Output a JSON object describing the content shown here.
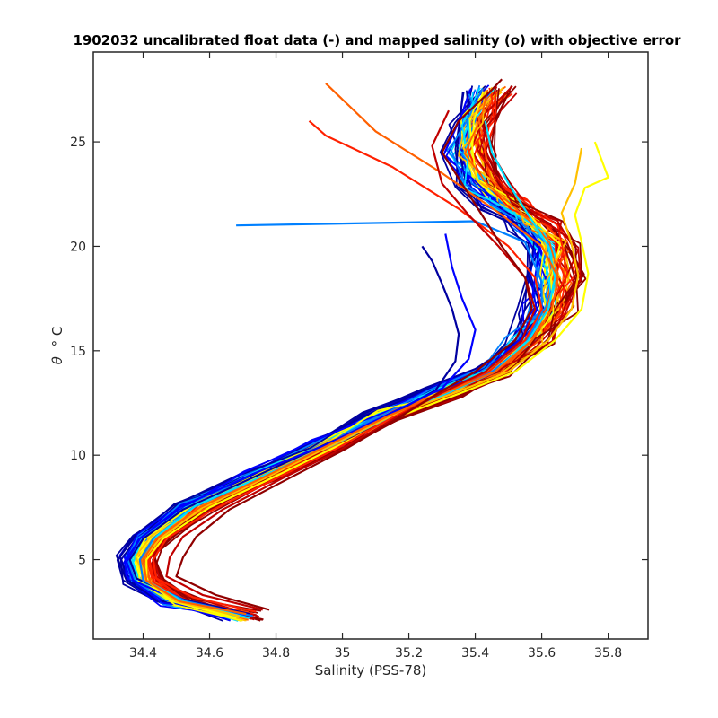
{
  "chart_data": {
    "type": "line",
    "title": "1902032 uncalibrated float data (-) and mapped salinity (o) with objective error",
    "xlabel": "Salinity (PSS-78)",
    "ylabel_symbol": "θ",
    "ylabel_unit": "° C",
    "xlim": [
      34.25,
      35.92
    ],
    "ylim": [
      1.2,
      29.3
    ],
    "x_ticks": [
      34.4,
      34.6,
      34.8,
      35,
      35.2,
      35.4,
      35.6,
      35.8
    ],
    "y_ticks": [
      5,
      10,
      15,
      20,
      25
    ],
    "grid": false,
    "legend": "none",
    "colormap": [
      "#00008f",
      "#0000ff",
      "#0080ff",
      "#00ffff",
      "#80ff80",
      "#ffff00",
      "#ff8000",
      "#ff0000",
      "#800000"
    ],
    "profile_colors": [
      "#0000a0",
      "#0000ff",
      "#0080ff",
      "#00e0ff",
      "#ffff00",
      "#ffc000",
      "#ff6000",
      "#ff2000",
      "#c00000",
      "#900000"
    ],
    "base_curve": {
      "salinity": [
        34.7,
        34.5,
        34.4,
        34.38,
        34.42,
        34.55,
        34.75,
        34.95,
        35.12,
        35.3,
        35.45,
        35.56,
        35.62,
        35.64,
        35.63,
        35.58,
        35.5,
        35.42,
        35.38,
        35.4,
        35.45
      ],
      "temperature": [
        2.3,
        3.0,
        4.0,
        5.0,
        6.0,
        7.5,
        9.0,
        10.5,
        11.9,
        13.0,
        14.0,
        15.5,
        17.0,
        18.5,
        20.0,
        21.0,
        22.0,
        23.0,
        24.5,
        26.0,
        27.5
      ]
    },
    "profiles": [
      {
        "id": "early-1",
        "color": "#0000a0",
        "salinity": [
          34.72,
          34.52,
          34.38,
          34.36,
          34.4,
          34.52,
          34.74,
          34.96,
          35.14,
          35.28,
          35.34,
          35.35,
          35.33,
          35.3,
          35.27,
          35.24
        ],
        "temperature": [
          2.4,
          3.1,
          4.1,
          5.0,
          6.0,
          7.4,
          9.0,
          10.6,
          11.9,
          13.1,
          14.5,
          15.8,
          17.0,
          18.2,
          19.3,
          20.0
        ]
      },
      {
        "id": "early-2",
        "color": "#0000ff",
        "salinity": [
          34.71,
          34.51,
          34.37,
          34.35,
          34.39,
          34.51,
          34.73,
          34.95,
          35.13,
          35.3,
          35.38,
          35.4,
          35.36,
          35.33,
          35.31
        ],
        "temperature": [
          2.3,
          3.0,
          4.0,
          4.9,
          6.0,
          7.5,
          9.1,
          10.5,
          11.9,
          13.2,
          14.6,
          16.0,
          17.5,
          19.0,
          20.6
        ]
      },
      {
        "id": "outlier-spike",
        "color": "#0080ff",
        "salinity": [
          34.73,
          34.53,
          34.4,
          34.39,
          34.43,
          34.55,
          34.76,
          34.97,
          35.15,
          35.32,
          35.45,
          35.55,
          35.6,
          35.6,
          35.55,
          35.4,
          34.68
        ],
        "temperature": [
          2.3,
          3.0,
          4.0,
          5.0,
          6.0,
          7.5,
          9.0,
          10.5,
          11.9,
          13.0,
          14.0,
          15.3,
          16.8,
          18.3,
          20.2,
          21.2,
          21.0
        ]
      },
      {
        "id": "cyan-1",
        "color": "#00e0ff",
        "salinity": [
          34.72,
          34.52,
          34.41,
          34.4,
          34.44,
          34.56,
          34.76,
          34.96,
          35.14,
          35.32,
          35.46,
          35.56,
          35.62,
          35.64,
          35.62,
          35.56,
          35.5,
          35.45,
          35.43
        ],
        "temperature": [
          2.2,
          3.0,
          4.0,
          5.0,
          6.1,
          7.6,
          9.0,
          10.4,
          11.8,
          13.0,
          14.0,
          15.5,
          17.0,
          18.5,
          20.0,
          21.5,
          23.0,
          24.5,
          26.0
        ]
      },
      {
        "id": "yellow-1",
        "color": "#ffff00",
        "salinity": [
          34.68,
          34.49,
          34.41,
          34.41,
          34.46,
          34.6,
          34.8,
          34.98,
          35.16,
          35.36,
          35.52,
          35.64,
          35.72,
          35.74,
          35.72,
          35.7,
          35.73,
          35.8,
          35.76
        ],
        "temperature": [
          2.2,
          3.0,
          4.0,
          5.0,
          6.0,
          7.5,
          9.0,
          10.4,
          11.8,
          13.0,
          14.0,
          15.5,
          17.0,
          18.7,
          20.2,
          21.5,
          22.8,
          23.3,
          25.0
        ]
      },
      {
        "id": "yellow-2",
        "color": "#ffc000",
        "salinity": [
          34.69,
          34.5,
          34.41,
          34.4,
          34.45,
          34.58,
          34.78,
          34.97,
          35.15,
          35.34,
          35.5,
          35.62,
          35.69,
          35.71,
          35.69,
          35.66,
          35.7,
          35.72
        ],
        "temperature": [
          2.3,
          3.0,
          4.0,
          5.0,
          6.0,
          7.5,
          9.0,
          10.5,
          11.9,
          13.0,
          14.0,
          15.5,
          17.0,
          18.6,
          20.1,
          21.6,
          23.0,
          24.7
        ]
      },
      {
        "id": "orange-1",
        "color": "#ff6000",
        "salinity": [
          34.71,
          34.51,
          34.41,
          34.4,
          34.44,
          34.57,
          34.77,
          34.96,
          35.14,
          35.31,
          35.46,
          35.57,
          35.63,
          35.65,
          35.6,
          35.48,
          35.3,
          35.1,
          34.95
        ],
        "temperature": [
          2.4,
          3.0,
          4.0,
          5.0,
          6.0,
          7.5,
          9.0,
          10.5,
          11.9,
          13.0,
          14.0,
          15.5,
          17.0,
          18.5,
          20.0,
          21.5,
          23.5,
          25.5,
          27.8
        ]
      },
      {
        "id": "red-1",
        "color": "#ff2000",
        "salinity": [
          34.74,
          34.55,
          34.44,
          34.43,
          34.47,
          34.6,
          34.79,
          34.98,
          35.15,
          35.3,
          35.44,
          35.55,
          35.6,
          35.58,
          35.5,
          35.35,
          35.15,
          34.95,
          34.9
        ],
        "temperature": [
          2.5,
          3.2,
          4.1,
          5.0,
          6.0,
          7.3,
          8.8,
          10.3,
          11.8,
          13.0,
          14.0,
          15.5,
          17.0,
          18.5,
          20.0,
          21.8,
          23.8,
          25.3,
          26.0
        ]
      },
      {
        "id": "darkred-1",
        "color": "#c00000",
        "salinity": [
          34.76,
          34.58,
          34.47,
          34.48,
          34.52,
          34.64,
          34.82,
          35.0,
          35.16,
          35.3,
          35.43,
          35.54,
          35.58,
          35.55,
          35.47,
          35.38,
          35.3,
          35.27,
          35.32
        ],
        "temperature": [
          2.6,
          3.3,
          4.2,
          5.1,
          6.1,
          7.4,
          8.9,
          10.3,
          11.8,
          13.0,
          14.0,
          15.5,
          17.0,
          18.5,
          20.0,
          21.5,
          23.0,
          24.8,
          26.5
        ]
      },
      {
        "id": "darkred-2",
        "color": "#900000",
        "salinity": [
          34.78,
          34.62,
          34.5,
          34.52,
          34.56,
          34.66,
          34.84,
          35.01,
          35.17,
          35.29,
          35.4,
          35.52,
          35.57,
          35.55,
          35.48,
          35.42,
          35.36,
          35.3,
          35.35,
          35.45,
          35.48
        ],
        "temperature": [
          2.6,
          3.3,
          4.2,
          5.1,
          6.1,
          7.4,
          8.9,
          10.3,
          11.8,
          13.0,
          14.0,
          15.5,
          17.0,
          18.5,
          20.0,
          21.5,
          23.0,
          24.5,
          26.0,
          27.5,
          28.0
        ]
      }
    ]
  }
}
